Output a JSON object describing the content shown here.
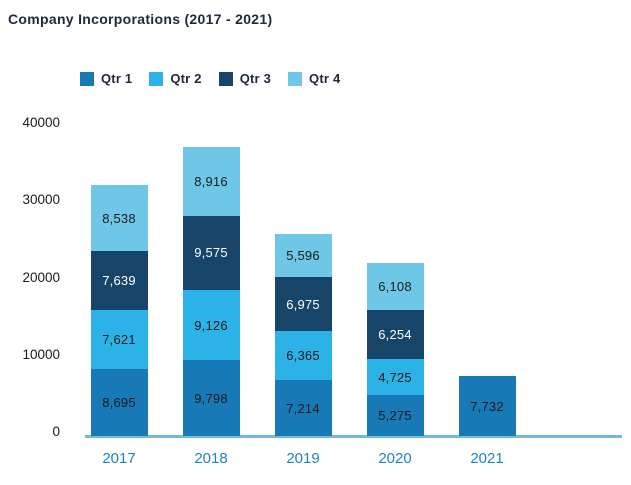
{
  "title": "Company Incorporations (2017 - 2021)",
  "chart_data": {
    "type": "bar",
    "stacked": true,
    "title": "Company Incorporations (2017 - 2021)",
    "categories": [
      "2017",
      "2018",
      "2019",
      "2020",
      "2021"
    ],
    "series": [
      {
        "name": "Qtr 1",
        "color": "#1779B6",
        "label_color": "#1A1A1A",
        "values": [
          8695,
          9798,
          7214,
          5275,
          7732
        ]
      },
      {
        "name": "Qtr 2",
        "color": "#2BB2E7",
        "label_color": "#1A1A1A",
        "values": [
          7621,
          9126,
          6365,
          4725,
          null
        ]
      },
      {
        "name": "Qtr 3",
        "color": "#164569",
        "label_color": "#FFFFFF",
        "values": [
          7639,
          9575,
          6975,
          6254,
          null
        ]
      },
      {
        "name": "Qtr 4",
        "color": "#6FC7E8",
        "label_color": "#1A1A1A",
        "values": [
          8538,
          8916,
          5596,
          6108,
          null
        ]
      }
    ],
    "ylim": [
      0,
      40000
    ],
    "yticks": [
      0,
      10000,
      20000,
      30000,
      40000
    ],
    "grid": false,
    "legend_position": "top",
    "value_label_format": "comma",
    "colors": {
      "title_text": "#20293F",
      "legend_text": "#20293F",
      "y_tick_text": "#1A1A1A",
      "x_tick_text": "#1E82C4",
      "axis_line": "#74B8DC",
      "background": "#FFFFFF"
    }
  }
}
